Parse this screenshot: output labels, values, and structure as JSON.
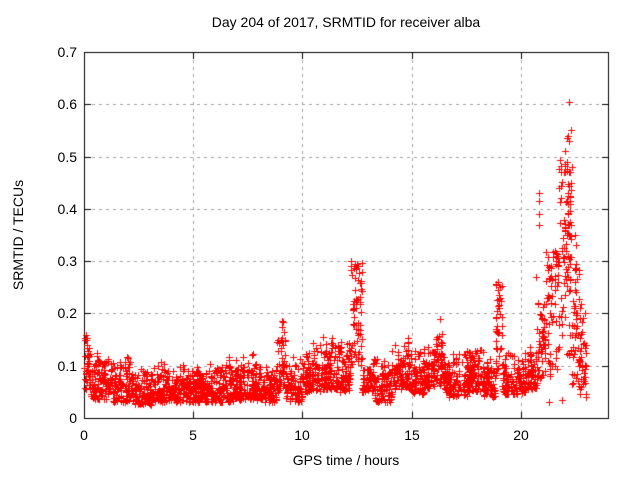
{
  "window": {
    "background_color": "#ffffff"
  },
  "chart_data": {
    "type": "scatter",
    "title": "Day 204 of 2017, SRMTID for receiver alba",
    "xlabel": "GPS time / hours",
    "ylabel": "SRMTID / TECUs",
    "xlim": [
      0,
      24
    ],
    "ylim": [
      0,
      0.7
    ],
    "x_ticks": [
      0,
      5,
      10,
      15,
      20
    ],
    "x_tick_labels": [
      "0",
      "5",
      "10",
      "15",
      "20"
    ],
    "y_ticks": [
      0,
      0.1,
      0.2,
      0.3,
      0.4,
      0.5,
      0.6,
      0.7
    ],
    "y_tick_labels": [
      "0",
      "0.1",
      "0.2",
      "0.3",
      "0.4",
      "0.5",
      "0.6",
      "0.7"
    ],
    "grid": true,
    "grid_style": "dashed",
    "grid_color": "#a0a0a0",
    "border_color": "#000000",
    "text_color": "#000000",
    "marker": "plus",
    "marker_size_px": 7,
    "marker_color": "#ff0000",
    "legend": null,
    "seed": 204,
    "series_profile": {
      "description": "Dense noisy scatter of SRMTID vs GPS time; ~2600 points between hours 0 and 23. Baseline band 0.03-0.13 TECUs; spike at h9.1 to 0.19; large spike cluster at h12.2-12.7 up to 0.30; bumps near h16.3 to 0.19; narrow spike at h18.9 to 0.26; strong disturbed period h20.7-23.0 with values up to 0.6 near h22.2; data ends near h23.",
      "segments_format": [
        "t_start",
        "t_end",
        "n_points",
        "v_min",
        "v_max",
        "spread(b=band-skewed-low,c=column-uniform)"
      ],
      "segments": [
        [
          0.0,
          0.3,
          40,
          0.05,
          0.16,
          "c"
        ],
        [
          0.3,
          1.2,
          100,
          0.035,
          0.13,
          "b"
        ],
        [
          1.2,
          2.2,
          110,
          0.03,
          0.125,
          "b"
        ],
        [
          2.2,
          3.1,
          100,
          0.025,
          0.1,
          "b"
        ],
        [
          3.1,
          4.0,
          100,
          0.03,
          0.115,
          "b"
        ],
        [
          4.0,
          5.0,
          110,
          0.03,
          0.105,
          "b"
        ],
        [
          5.0,
          6.0,
          110,
          0.03,
          0.11,
          "b"
        ],
        [
          6.0,
          7.0,
          110,
          0.03,
          0.125,
          "b"
        ],
        [
          7.0,
          8.0,
          110,
          0.035,
          0.13,
          "b"
        ],
        [
          8.0,
          8.8,
          90,
          0.03,
          0.115,
          "b"
        ],
        [
          8.8,
          9.25,
          50,
          0.05,
          0.19,
          "b"
        ],
        [
          9.25,
          10.0,
          80,
          0.03,
          0.125,
          "b"
        ],
        [
          10.0,
          10.8,
          90,
          0.05,
          0.145,
          "b"
        ],
        [
          10.8,
          11.6,
          90,
          0.055,
          0.165,
          "b"
        ],
        [
          11.6,
          12.2,
          70,
          0.05,
          0.15,
          "b"
        ],
        [
          12.2,
          12.75,
          70,
          0.1,
          0.3,
          "c"
        ],
        [
          12.75,
          13.3,
          60,
          0.05,
          0.135,
          "b"
        ],
        [
          13.3,
          14.1,
          90,
          0.03,
          0.12,
          "b"
        ],
        [
          14.1,
          14.9,
          90,
          0.055,
          0.16,
          "b"
        ],
        [
          14.9,
          15.6,
          80,
          0.045,
          0.135,
          "b"
        ],
        [
          15.6,
          16.1,
          60,
          0.055,
          0.15,
          "b"
        ],
        [
          16.1,
          16.5,
          50,
          0.06,
          0.19,
          "b"
        ],
        [
          16.5,
          17.6,
          110,
          0.04,
          0.14,
          "b"
        ],
        [
          17.6,
          18.3,
          80,
          0.05,
          0.16,
          "b"
        ],
        [
          18.3,
          18.85,
          60,
          0.04,
          0.12,
          "b"
        ],
        [
          18.85,
          19.15,
          35,
          0.07,
          0.26,
          "c"
        ],
        [
          19.15,
          20.3,
          120,
          0.045,
          0.13,
          "b"
        ],
        [
          20.3,
          20.75,
          50,
          0.055,
          0.15,
          "b"
        ],
        [
          20.75,
          21.15,
          45,
          0.07,
          0.22,
          "c"
        ],
        [
          21.15,
          21.7,
          55,
          0.08,
          0.32,
          "c"
        ],
        [
          21.7,
          22.35,
          60,
          0.12,
          0.5,
          "c"
        ],
        [
          21.9,
          22.3,
          40,
          0.25,
          0.5,
          "c"
        ],
        [
          22.35,
          22.7,
          45,
          0.05,
          0.3,
          "c"
        ],
        [
          22.7,
          23.0,
          35,
          0.035,
          0.22,
          "c"
        ]
      ],
      "outliers_format": [
        "t_hours",
        "v_tecus"
      ],
      "outliers": [
        [
          9.05,
          0.185
        ],
        [
          9.08,
          0.175
        ],
        [
          12.42,
          0.295
        ],
        [
          12.45,
          0.285
        ],
        [
          16.3,
          0.19
        ],
        [
          18.93,
          0.225
        ],
        [
          18.95,
          0.26
        ],
        [
          18.97,
          0.245
        ],
        [
          19.0,
          0.21
        ],
        [
          20.7,
          0.27
        ],
        [
          20.82,
          0.43
        ],
        [
          20.84,
          0.415
        ],
        [
          20.86,
          0.39
        ],
        [
          20.83,
          0.37
        ],
        [
          21.55,
          0.32
        ],
        [
          21.6,
          0.3
        ],
        [
          22.05,
          0.51
        ],
        [
          22.1,
          0.49
        ],
        [
          22.12,
          0.535
        ],
        [
          22.15,
          0.54
        ],
        [
          22.2,
          0.605
        ],
        [
          22.22,
          0.53
        ],
        [
          22.3,
          0.55
        ],
        [
          22.35,
          0.48
        ],
        [
          22.5,
          0.35
        ],
        [
          22.55,
          0.33
        ],
        [
          21.3,
          0.03
        ],
        [
          21.9,
          0.035
        ],
        [
          22.7,
          0.045
        ]
      ]
    }
  }
}
